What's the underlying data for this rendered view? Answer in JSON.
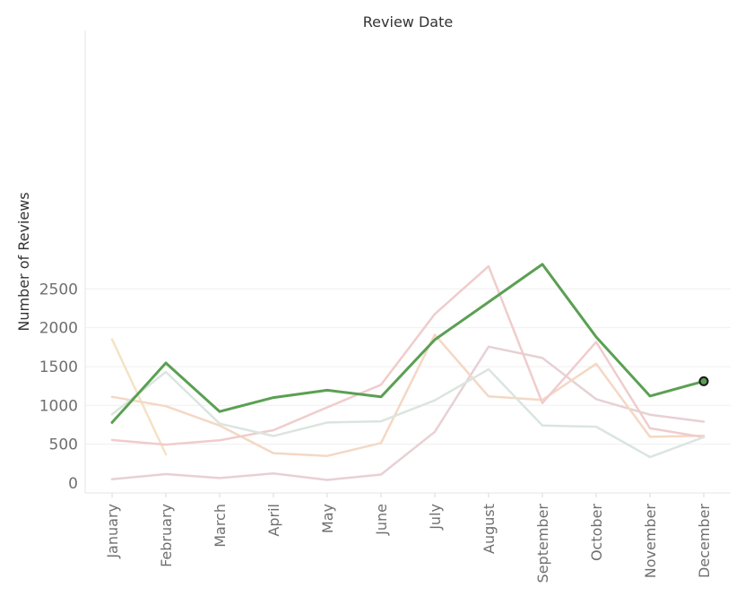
{
  "chart_data": {
    "type": "line",
    "title": "Review Date",
    "xlabel": "",
    "ylabel": "Number of Reviews",
    "categories": [
      "January",
      "February",
      "March",
      "April",
      "May",
      "June",
      "July",
      "August",
      "September",
      "October",
      "November",
      "December"
    ],
    "ylim": [
      0,
      2900
    ],
    "yticks": [
      0,
      500,
      1000,
      1500,
      2000,
      2500
    ],
    "grid": true,
    "legend": "none",
    "series": [
      {
        "color": "#e8d0d4",
        "values": [
          50,
          115,
          65,
          125,
          40,
          110,
          660,
          1755,
          1610,
          1080,
          880,
          790
        ]
      },
      {
        "color": "#f5e2c4",
        "values": [
          1850,
          370,
          null,
          null,
          null,
          null,
          null,
          null,
          null,
          null,
          null,
          null
        ]
      },
      {
        "color": "#f4d8c4",
        "values": [
          1110,
          990,
          740,
          385,
          350,
          515,
          1910,
          1115,
          1070,
          1535,
          595,
          610
        ]
      },
      {
        "color": "#f0cccc",
        "values": [
          555,
          495,
          550,
          680,
          975,
          1265,
          2175,
          2790,
          1030,
          1815,
          705,
          590
        ]
      },
      {
        "color": "#dbe5e0",
        "values": [
          885,
          1430,
          765,
          605,
          780,
          795,
          1065,
          1465,
          740,
          725,
          335,
          590
        ]
      },
      {
        "color": "#5aa052",
        "values": [
          780,
          1545,
          920,
          1100,
          1195,
          1110,
          1845,
          2330,
          2815,
          1880,
          1120,
          1310
        ]
      }
    ],
    "highlight_marker": {
      "series": 5,
      "category": "December",
      "value": 1310
    }
  }
}
